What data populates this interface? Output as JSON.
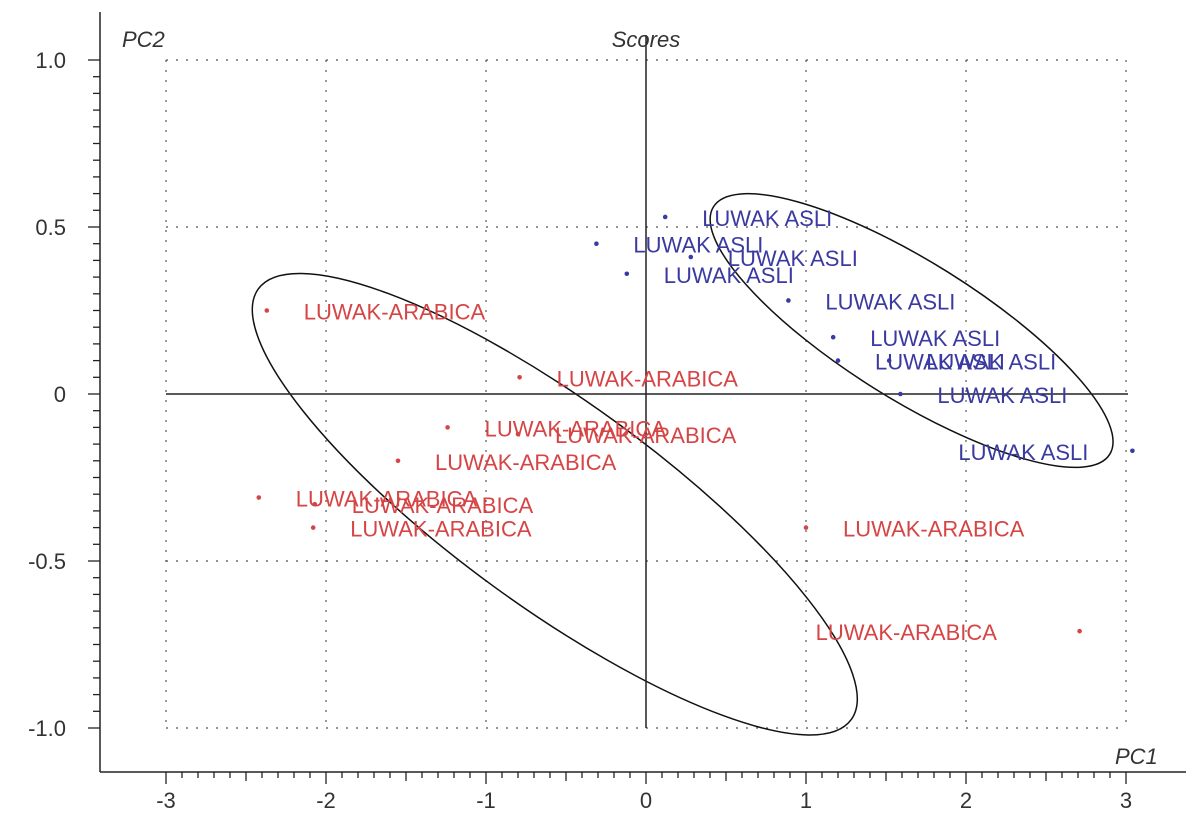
{
  "chart_data": {
    "type": "scatter",
    "title": "Scores",
    "xlabel": "PC1",
    "ylabel": "PC2",
    "xlim": [
      -3,
      3
    ],
    "ylim": [
      -1.0,
      1.0
    ],
    "x_ticks": [
      "-3",
      "-2",
      "-1",
      "0",
      "1",
      "2",
      "3"
    ],
    "y_ticks": [
      "1.0",
      "0.5",
      "0",
      "-0.5",
      "-1.0"
    ],
    "grid": true,
    "colors": {
      "luwak_asli": "#3a3aa0",
      "luwak_arabica": "#d64545",
      "axis": "#222222"
    },
    "series": [
      {
        "group": "luwak_asli",
        "points": [
          {
            "x": 0.12,
            "y": 0.53,
            "label": "LUWAK ASLI"
          },
          {
            "x": -0.31,
            "y": 0.45,
            "label": "LUWAK ASLI"
          },
          {
            "x": 0.28,
            "y": 0.41,
            "label": "LUWAK ASLI"
          },
          {
            "x": -0.12,
            "y": 0.36,
            "label": "LUWAK ASLI"
          },
          {
            "x": 0.89,
            "y": 0.28,
            "label": "LUWAK ASLI"
          },
          {
            "x": 1.17,
            "y": 0.17,
            "label": "LUWAK ASLI"
          },
          {
            "x": 1.2,
            "y": 0.1,
            "label": "LUWAK ASLI"
          },
          {
            "x": 1.52,
            "y": 0.1,
            "label": "LUWAK ASLI"
          },
          {
            "x": 1.59,
            "y": 0.0,
            "label": "LUWAK ASLI"
          },
          {
            "x": 3.04,
            "y": -0.17,
            "label": "LUWAK ASLI"
          }
        ]
      },
      {
        "group": "luwak_arabica",
        "points": [
          {
            "x": -2.37,
            "y": 0.25,
            "label": "LUWAK-ARABICA"
          },
          {
            "x": -0.79,
            "y": 0.05,
            "label": "LUWAK-ARABICA"
          },
          {
            "x": -1.24,
            "y": -0.1,
            "label": "LUWAK-ARABICA"
          },
          {
            "x": -0.8,
            "y": -0.12,
            "label": "LUWAK-ARABICA"
          },
          {
            "x": -1.55,
            "y": -0.2,
            "label": "LUWAK-ARABICA"
          },
          {
            "x": -2.42,
            "y": -0.31,
            "label": "LUWAK-ARABICA"
          },
          {
            "x": -2.07,
            "y": -0.33,
            "label": "LUWAK-ARABICA"
          },
          {
            "x": -2.08,
            "y": -0.4,
            "label": "LUWAK-ARABICA"
          },
          {
            "x": 1.0,
            "y": -0.4,
            "label": "LUWAK-ARABICA"
          },
          {
            "x": 2.71,
            "y": -0.71,
            "label": "LUWAK-ARABICA"
          }
        ]
      }
    ],
    "ellipses": [
      {
        "group": "luwak_asli",
        "cx": 1.66,
        "cy": 0.19,
        "rx": 1.46,
        "ry": 0.43,
        "angle_deg": 32
      },
      {
        "group": "luwak_arabica",
        "cx": -0.57,
        "cy": -0.33,
        "rx": 2.29,
        "ry": 0.64,
        "angle_deg": 36
      }
    ]
  }
}
